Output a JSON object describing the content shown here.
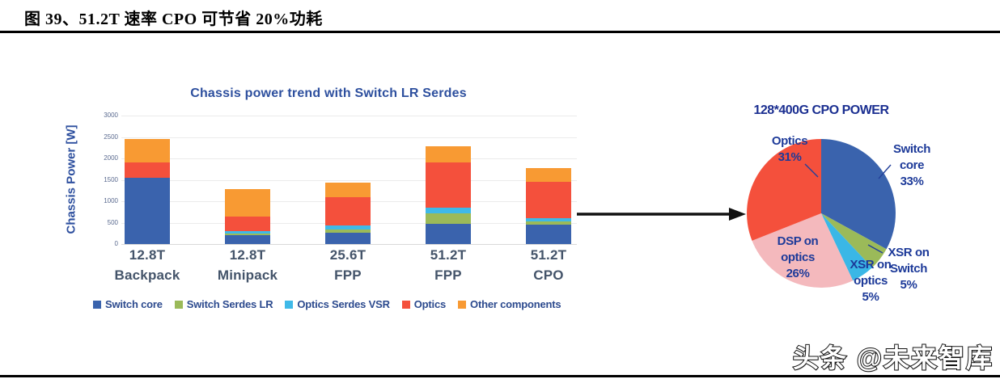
{
  "figure_caption": "图 39、51.2T 速率 CPO 可节省 20%功耗",
  "watermark": "头条 @未来智库",
  "chart_data": [
    {
      "type": "bar",
      "stacked": true,
      "title": "Chassis power trend with Switch LR Serdes",
      "xlabel": "",
      "ylabel": "Chassis Power [W]",
      "ylim": [
        0,
        3000
      ],
      "yticks": [
        0,
        500,
        1000,
        1500,
        2000,
        2500,
        3000
      ],
      "grid": true,
      "legend_position": "bottom",
      "categories": [
        {
          "speed": "12.8T",
          "name": "Backpack"
        },
        {
          "speed": "12.8T",
          "name": "Minipack"
        },
        {
          "speed": "25.6T",
          "name": "FPP"
        },
        {
          "speed": "51.2T",
          "name": "FPP"
        },
        {
          "speed": "51.2T",
          "name": "CPO"
        }
      ],
      "series": [
        {
          "name": "Switch core",
          "color": "#3a63ad",
          "values": [
            1550,
            200,
            260,
            470,
            450
          ]
        },
        {
          "name": "Switch Serdes LR",
          "color": "#9bba59",
          "values": [
            0,
            50,
            80,
            240,
            80
          ]
        },
        {
          "name": "Optics Serdes VSR",
          "color": "#3fb9e8",
          "values": [
            0,
            50,
            90,
            130,
            75
          ]
        },
        {
          "name": "Optics",
          "color": "#f4503c",
          "values": [
            350,
            340,
            660,
            1060,
            850
          ]
        },
        {
          "name": "Other components",
          "color": "#f89a33",
          "values": [
            550,
            650,
            340,
            390,
            310
          ]
        }
      ],
      "totals_w": [
        2450,
        1290,
        1430,
        2290,
        1765
      ]
    },
    {
      "type": "pie",
      "title": "128*400G CPO POWER",
      "start_angle_deg": 0,
      "direction": "clockwise",
      "slices": [
        {
          "label": "Switch core",
          "pct": 33,
          "color": "#3a63ad",
          "label_lines": [
            "Switch",
            "core",
            "33%"
          ]
        },
        {
          "label": "XSR on Switch",
          "pct": 5,
          "color": "#9bba59",
          "label_lines": [
            "XSR on",
            "Switch",
            "5%"
          ]
        },
        {
          "label": "XSR on optics",
          "pct": 5,
          "color": "#3ab7e6",
          "label_lines": [
            "XSR on",
            "optics",
            "5%"
          ]
        },
        {
          "label": "DSP on optics",
          "pct": 26,
          "color": "#f4b9bd",
          "label_lines": [
            "DSP on",
            "optics",
            "26%"
          ]
        },
        {
          "label": "Optics",
          "pct": 31,
          "color": "#f4503c",
          "label_lines": [
            "Optics",
            "31%"
          ]
        }
      ]
    }
  ]
}
